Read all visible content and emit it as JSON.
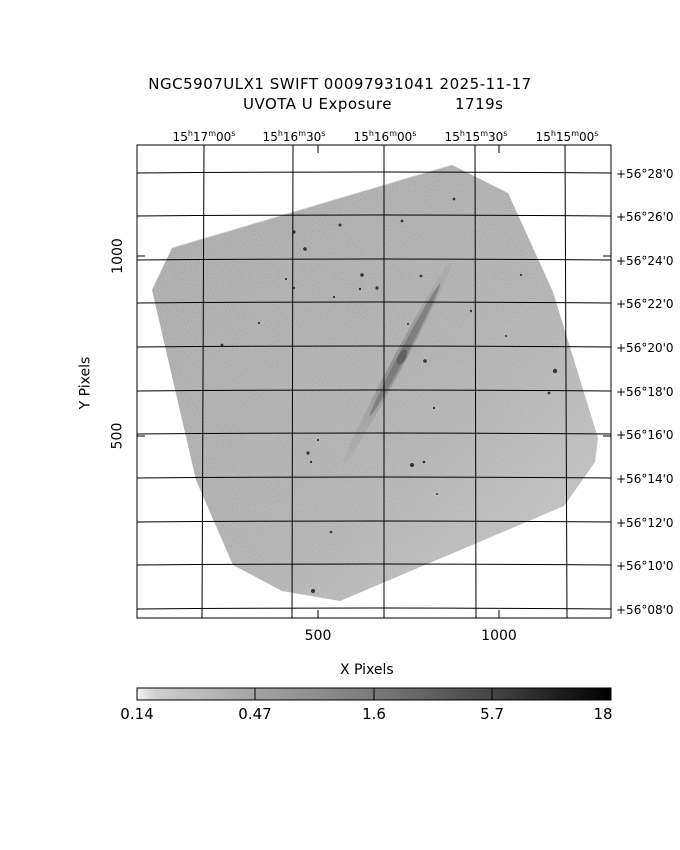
{
  "header": {
    "title": "NGC5907ULX1 SWIFT 00097931041 2025-11-17",
    "exposure_label": "UVOTA U Exposure",
    "exposure_time": "1719s"
  },
  "ra_axis": {
    "ticks": [
      {
        "h": "15",
        "m": "17",
        "s": "00"
      },
      {
        "h": "15",
        "m": "16",
        "s": "30"
      },
      {
        "h": "15",
        "m": "16",
        "s": "00"
      },
      {
        "h": "15",
        "m": "15",
        "s": "30"
      },
      {
        "h": "15",
        "m": "15",
        "s": "00"
      }
    ]
  },
  "dec_axis": {
    "ticks": [
      "+56°28'0",
      "+56°26'0",
      "+56°24'0",
      "+56°22'0",
      "+56°20'0",
      "+56°18'0",
      "+56°16'0",
      "+56°14'0",
      "+56°12'0",
      "+56°10'0",
      "+56°08'0"
    ]
  },
  "x_axis": {
    "label": "X Pixels",
    "ticks": [
      "500",
      "1000"
    ]
  },
  "y_axis": {
    "label": "Y Pixels",
    "ticks": [
      "1000",
      "500"
    ]
  },
  "colorbar": {
    "labels": [
      "0.14",
      "0.47",
      "1.6",
      "5.7",
      "18"
    ]
  }
}
